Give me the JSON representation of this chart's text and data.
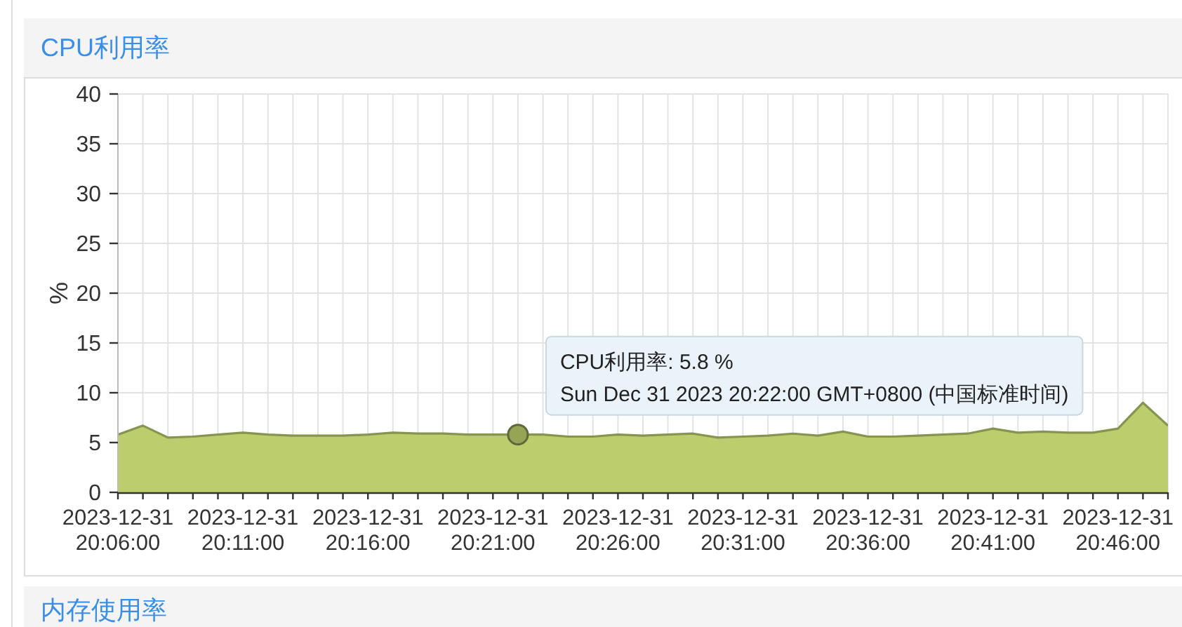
{
  "chart_data": [
    {
      "type": "area",
      "title": "CPU利用率",
      "ylabel": "%",
      "x": [
        "2023-12-31T20:06",
        "2023-12-31T20:07",
        "2023-12-31T20:08",
        "2023-12-31T20:09",
        "2023-12-31T20:10",
        "2023-12-31T20:11",
        "2023-12-31T20:12",
        "2023-12-31T20:13",
        "2023-12-31T20:14",
        "2023-12-31T20:15",
        "2023-12-31T20:16",
        "2023-12-31T20:17",
        "2023-12-31T20:18",
        "2023-12-31T20:19",
        "2023-12-31T20:20",
        "2023-12-31T20:21",
        "2023-12-31T20:22",
        "2023-12-31T20:23",
        "2023-12-31T20:24",
        "2023-12-31T20:25",
        "2023-12-31T20:26",
        "2023-12-31T20:27",
        "2023-12-31T20:28",
        "2023-12-31T20:29",
        "2023-12-31T20:30",
        "2023-12-31T20:31",
        "2023-12-31T20:32",
        "2023-12-31T20:33",
        "2023-12-31T20:34",
        "2023-12-31T20:35",
        "2023-12-31T20:36",
        "2023-12-31T20:37",
        "2023-12-31T20:38",
        "2023-12-31T20:39",
        "2023-12-31T20:40",
        "2023-12-31T20:41",
        "2023-12-31T20:42",
        "2023-12-31T20:43",
        "2023-12-31T20:44",
        "2023-12-31T20:45",
        "2023-12-31T20:46",
        "2023-12-31T20:47",
        "2023-12-31T20:48"
      ],
      "values": [
        5.8,
        6.7,
        5.5,
        5.6,
        5.8,
        6.0,
        5.8,
        5.7,
        5.7,
        5.7,
        5.8,
        6.0,
        5.9,
        5.9,
        5.8,
        5.8,
        5.8,
        5.8,
        5.6,
        5.6,
        5.8,
        5.7,
        5.8,
        5.9,
        5.5,
        5.6,
        5.7,
        5.9,
        5.7,
        6.1,
        5.6,
        5.6,
        5.7,
        5.8,
        5.9,
        6.4,
        6.0,
        6.1,
        6.0,
        6.0,
        6.4,
        9.0,
        6.7
      ],
      "color": "#bccd6e",
      "xlim": [
        "2023-12-31T20:06",
        "2023-12-31T20:48"
      ],
      "xticks": [
        {
          "value": "2023-12-31T20:06",
          "label": "2023-12-31\n20:06:00"
        },
        {
          "value": "2023-12-31T20:07",
          "label": null
        },
        {
          "value": "2023-12-31T20:08",
          "label": null
        },
        {
          "value": "2023-12-31T20:09",
          "label": null
        },
        {
          "value": "2023-12-31T20:10",
          "label": null
        },
        {
          "value": "2023-12-31T20:11",
          "label": "2023-12-31\n20:11:00"
        },
        {
          "value": "2023-12-31T20:12",
          "label": null
        },
        {
          "value": "2023-12-31T20:13",
          "label": null
        },
        {
          "value": "2023-12-31T20:14",
          "label": null
        },
        {
          "value": "2023-12-31T20:15",
          "label": null
        },
        {
          "value": "2023-12-31T20:16",
          "label": "2023-12-31\n20:16:00"
        },
        {
          "value": "2023-12-31T20:17",
          "label": null
        },
        {
          "value": "2023-12-31T20:18",
          "label": null
        },
        {
          "value": "2023-12-31T20:19",
          "label": null
        },
        {
          "value": "2023-12-31T20:20",
          "label": null
        },
        {
          "value": "2023-12-31T20:21",
          "label": "2023-12-31\n20:21:00"
        },
        {
          "value": "2023-12-31T20:22",
          "label": null
        },
        {
          "value": "2023-12-31T20:23",
          "label": null
        },
        {
          "value": "2023-12-31T20:24",
          "label": null
        },
        {
          "value": "2023-12-31T20:25",
          "label": null
        },
        {
          "value": "2023-12-31T20:26",
          "label": "2023-12-31\n20:26:00"
        },
        {
          "value": "2023-12-31T20:27",
          "label": null
        },
        {
          "value": "2023-12-31T20:28",
          "label": null
        },
        {
          "value": "2023-12-31T20:29",
          "label": null
        },
        {
          "value": "2023-12-31T20:30",
          "label": null
        },
        {
          "value": "2023-12-31T20:31",
          "label": "2023-12-31\n20:31:00"
        },
        {
          "value": "2023-12-31T20:32",
          "label": null
        },
        {
          "value": "2023-12-31T20:33",
          "label": null
        },
        {
          "value": "2023-12-31T20:34",
          "label": null
        },
        {
          "value": "2023-12-31T20:35",
          "label": null
        },
        {
          "value": "2023-12-31T20:36",
          "label": "2023-12-31\n20:36:00"
        },
        {
          "value": "2023-12-31T20:37",
          "label": null
        },
        {
          "value": "2023-12-31T20:38",
          "label": null
        },
        {
          "value": "2023-12-31T20:39",
          "label": null
        },
        {
          "value": "2023-12-31T20:40",
          "label": null
        },
        {
          "value": "2023-12-31T20:41",
          "label": "2023-12-31\n20:41:00"
        },
        {
          "value": "2023-12-31T20:42",
          "label": null
        },
        {
          "value": "2023-12-31T20:43",
          "label": null
        },
        {
          "value": "2023-12-31T20:44",
          "label": null
        },
        {
          "value": "2023-12-31T20:45",
          "label": null
        },
        {
          "value": "2023-12-31T20:46",
          "label": "2023-12-31\n20:46:00"
        },
        {
          "value": "2023-12-31T20:47",
          "label": null
        },
        {
          "value": "2023-12-31T20:48",
          "label": null
        }
      ],
      "ylim": [
        0,
        40
      ],
      "yticks": [
        0,
        5,
        10,
        15,
        20,
        25,
        30,
        35,
        40
      ],
      "grid": true,
      "annotations": [
        {
          "text": "CPU利用率: 5.8 %\nSun Dec 31 2023 20:22:00 GMT+0800 (中国标准时间)",
          "x": "2023-12-31T20:22",
          "y": 5.8
        }
      ]
    },
    {
      "type": "other",
      "title": "内存使用率"
    }
  ]
}
